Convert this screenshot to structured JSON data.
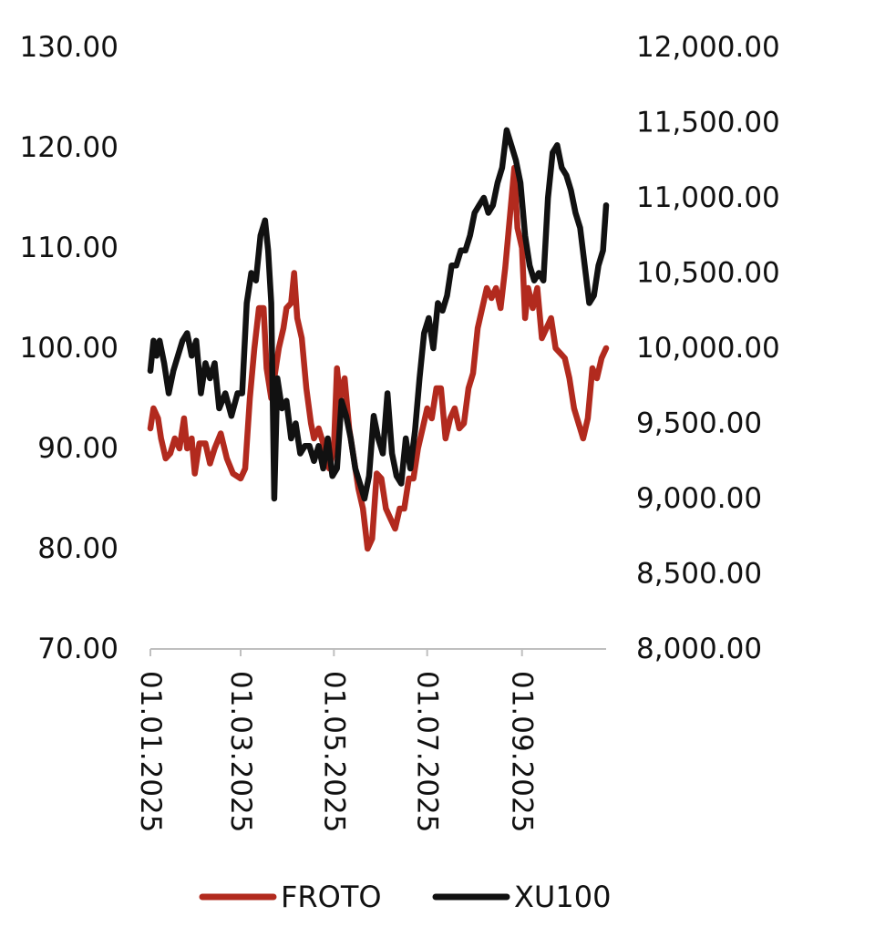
{
  "chart_data": {
    "type": "line",
    "title": "",
    "y_left": {
      "ticks": [
        "130.00",
        "120.00",
        "110.00",
        "100.00",
        "90.00",
        "80.00",
        "70.00"
      ],
      "range": [
        70,
        130
      ]
    },
    "y_right": {
      "ticks": [
        "12,000.00",
        "11,500.00",
        "11,000.00",
        "10,500.00",
        "10,000.00",
        "9,500.00",
        "9,000.00",
        "8,500.00",
        "8,000.00"
      ],
      "range": [
        8000,
        12000
      ]
    },
    "x_ticks": [
      "01.01.2025",
      "01.03.2025",
      "01.05.2025",
      "01.07.2025",
      "01.09.2025"
    ],
    "x_range": [
      "2025-01-01",
      "2025-10-26"
    ],
    "legend_position": "bottom",
    "grid": false,
    "series": [
      {
        "name": "FROTO",
        "axis": "left",
        "color": "#B22A1E",
        "points": [
          [
            "2025-01-01",
            92
          ],
          [
            "2025-01-03",
            94
          ],
          [
            "2025-01-06",
            93
          ],
          [
            "2025-01-08",
            91
          ],
          [
            "2025-01-11",
            89
          ],
          [
            "2025-01-14",
            89.5
          ],
          [
            "2025-01-17",
            91
          ],
          [
            "2025-01-20",
            90
          ],
          [
            "2025-01-23",
            93
          ],
          [
            "2025-01-25",
            90
          ],
          [
            "2025-01-28",
            91
          ],
          [
            "2025-01-30",
            87.5
          ],
          [
            "2025-02-02",
            90.5
          ],
          [
            "2025-02-06",
            90.5
          ],
          [
            "2025-02-09",
            88.5
          ],
          [
            "2025-02-12",
            90
          ],
          [
            "2025-02-16",
            91.5
          ],
          [
            "2025-02-20",
            89
          ],
          [
            "2025-02-24",
            87.5
          ],
          [
            "2025-03-01",
            87
          ],
          [
            "2025-03-04",
            88
          ],
          [
            "2025-03-07",
            95
          ],
          [
            "2025-03-10",
            100
          ],
          [
            "2025-03-13",
            104
          ],
          [
            "2025-03-16",
            104
          ],
          [
            "2025-03-18",
            98
          ],
          [
            "2025-03-21",
            95
          ],
          [
            "2025-03-23",
            97
          ],
          [
            "2025-03-26",
            100
          ],
          [
            "2025-03-29",
            102
          ],
          [
            "2025-03-31",
            104
          ],
          [
            "2025-04-03",
            104.5
          ],
          [
            "2025-04-05",
            107.5
          ],
          [
            "2025-04-07",
            103
          ],
          [
            "2025-04-10",
            101
          ],
          [
            "2025-04-13",
            96
          ],
          [
            "2025-04-16",
            92.5
          ],
          [
            "2025-04-18",
            91
          ],
          [
            "2025-04-21",
            92
          ],
          [
            "2025-04-25",
            90
          ],
          [
            "2025-04-28",
            88
          ],
          [
            "2025-05-01",
            90
          ],
          [
            "2025-05-03",
            98
          ],
          [
            "2025-05-05",
            95
          ],
          [
            "2025-05-08",
            97
          ],
          [
            "2025-05-11",
            92
          ],
          [
            "2025-05-14",
            89
          ],
          [
            "2025-05-17",
            86
          ],
          [
            "2025-05-20",
            84
          ],
          [
            "2025-05-23",
            80
          ],
          [
            "2025-05-26",
            81
          ],
          [
            "2025-05-29",
            87.5
          ],
          [
            "2025-06-01",
            87
          ],
          [
            "2025-06-04",
            84
          ],
          [
            "2025-06-07",
            83
          ],
          [
            "2025-06-10",
            82
          ],
          [
            "2025-06-13",
            84
          ],
          [
            "2025-06-16",
            84
          ],
          [
            "2025-06-19",
            87
          ],
          [
            "2025-06-22",
            87
          ],
          [
            "2025-06-25",
            90
          ],
          [
            "2025-06-28",
            92
          ],
          [
            "2025-07-01",
            94
          ],
          [
            "2025-07-04",
            93
          ],
          [
            "2025-07-07",
            96
          ],
          [
            "2025-07-10",
            96
          ],
          [
            "2025-07-13",
            91
          ],
          [
            "2025-07-16",
            93
          ],
          [
            "2025-07-19",
            94
          ],
          [
            "2025-07-22",
            92
          ],
          [
            "2025-07-25",
            92.5
          ],
          [
            "2025-07-28",
            96
          ],
          [
            "2025-07-31",
            97.5
          ],
          [
            "2025-08-03",
            102
          ],
          [
            "2025-08-06",
            104
          ],
          [
            "2025-08-09",
            106
          ],
          [
            "2025-08-12",
            105
          ],
          [
            "2025-08-15",
            106
          ],
          [
            "2025-08-18",
            104
          ],
          [
            "2025-08-21",
            108
          ],
          [
            "2025-08-24",
            113
          ],
          [
            "2025-08-27",
            118
          ],
          [
            "2025-08-29",
            112
          ],
          [
            "2025-09-01",
            110
          ],
          [
            "2025-09-03",
            103
          ],
          [
            "2025-09-05",
            106
          ],
          [
            "2025-09-08",
            104
          ],
          [
            "2025-09-11",
            106
          ],
          [
            "2025-09-14",
            101
          ],
          [
            "2025-09-17",
            102
          ],
          [
            "2025-09-20",
            103
          ],
          [
            "2025-09-23",
            100
          ],
          [
            "2025-09-26",
            99.5
          ],
          [
            "2025-09-29",
            99
          ],
          [
            "2025-10-02",
            97
          ],
          [
            "2025-10-05",
            94
          ],
          [
            "2025-10-08",
            92.5
          ],
          [
            "2025-10-11",
            91
          ],
          [
            "2025-10-14",
            93
          ],
          [
            "2025-10-17",
            98
          ],
          [
            "2025-10-20",
            97
          ],
          [
            "2025-10-23",
            99
          ],
          [
            "2025-10-26",
            100
          ]
        ]
      },
      {
        "name": "XU100",
        "axis": "right",
        "color": "#111111",
        "points": [
          [
            "2025-01-01",
            9850
          ],
          [
            "2025-01-03",
            10050
          ],
          [
            "2025-01-05",
            9950
          ],
          [
            "2025-01-07",
            10050
          ],
          [
            "2025-01-10",
            9900
          ],
          [
            "2025-01-13",
            9700
          ],
          [
            "2025-01-16",
            9850
          ],
          [
            "2025-01-19",
            9950
          ],
          [
            "2025-01-22",
            10050
          ],
          [
            "2025-01-25",
            10100
          ],
          [
            "2025-01-28",
            9950
          ],
          [
            "2025-01-31",
            10050
          ],
          [
            "2025-02-03",
            9700
          ],
          [
            "2025-02-06",
            9900
          ],
          [
            "2025-02-09",
            9800
          ],
          [
            "2025-02-12",
            9900
          ],
          [
            "2025-02-15",
            9600
          ],
          [
            "2025-02-19",
            9700
          ],
          [
            "2025-02-23",
            9550
          ],
          [
            "2025-02-27",
            9700
          ],
          [
            "2025-03-02",
            9700
          ],
          [
            "2025-03-05",
            10300
          ],
          [
            "2025-03-08",
            10500
          ],
          [
            "2025-03-11",
            10450
          ],
          [
            "2025-03-14",
            10750
          ],
          [
            "2025-03-17",
            10850
          ],
          [
            "2025-03-19",
            10650
          ],
          [
            "2025-03-21",
            10300
          ],
          [
            "2025-03-23",
            9000
          ],
          [
            "2025-03-25",
            9800
          ],
          [
            "2025-03-28",
            9600
          ],
          [
            "2025-03-31",
            9650
          ],
          [
            "2025-04-03",
            9400
          ],
          [
            "2025-04-06",
            9500
          ],
          [
            "2025-04-09",
            9300
          ],
          [
            "2025-04-12",
            9350
          ],
          [
            "2025-04-15",
            9350
          ],
          [
            "2025-04-18",
            9250
          ],
          [
            "2025-04-21",
            9350
          ],
          [
            "2025-04-24",
            9200
          ],
          [
            "2025-04-27",
            9400
          ],
          [
            "2025-04-30",
            9150
          ],
          [
            "2025-05-03",
            9200
          ],
          [
            "2025-05-06",
            9650
          ],
          [
            "2025-05-09",
            9550
          ],
          [
            "2025-05-12",
            9400
          ],
          [
            "2025-05-15",
            9200
          ],
          [
            "2025-05-18",
            9100
          ],
          [
            "2025-05-21",
            9000
          ],
          [
            "2025-05-24",
            9150
          ],
          [
            "2025-05-27",
            9550
          ],
          [
            "2025-05-30",
            9400
          ],
          [
            "2025-06-02",
            9300
          ],
          [
            "2025-06-05",
            9700
          ],
          [
            "2025-06-08",
            9300
          ],
          [
            "2025-06-11",
            9150
          ],
          [
            "2025-06-14",
            9100
          ],
          [
            "2025-06-17",
            9400
          ],
          [
            "2025-06-20",
            9200
          ],
          [
            "2025-06-23",
            9450
          ],
          [
            "2025-06-26",
            9800
          ],
          [
            "2025-06-29",
            10100
          ],
          [
            "2025-07-02",
            10200
          ],
          [
            "2025-07-05",
            10000
          ],
          [
            "2025-07-08",
            10300
          ],
          [
            "2025-07-11",
            10250
          ],
          [
            "2025-07-14",
            10350
          ],
          [
            "2025-07-17",
            10550
          ],
          [
            "2025-07-20",
            10550
          ],
          [
            "2025-07-23",
            10650
          ],
          [
            "2025-07-26",
            10650
          ],
          [
            "2025-07-29",
            10750
          ],
          [
            "2025-08-01",
            10900
          ],
          [
            "2025-08-04",
            10950
          ],
          [
            "2025-08-07",
            11000
          ],
          [
            "2025-08-10",
            10900
          ],
          [
            "2025-08-13",
            10950
          ],
          [
            "2025-08-16",
            11100
          ],
          [
            "2025-08-19",
            11200
          ],
          [
            "2025-08-22",
            11450
          ],
          [
            "2025-08-25",
            11350
          ],
          [
            "2025-08-28",
            11250
          ],
          [
            "2025-08-31",
            11100
          ],
          [
            "2025-09-03",
            10750
          ],
          [
            "2025-09-06",
            10550
          ],
          [
            "2025-09-09",
            10450
          ],
          [
            "2025-09-12",
            10500
          ],
          [
            "2025-09-15",
            10450
          ],
          [
            "2025-09-18",
            11000
          ],
          [
            "2025-09-21",
            11300
          ],
          [
            "2025-09-24",
            11350
          ],
          [
            "2025-09-27",
            11200
          ],
          [
            "2025-09-30",
            11150
          ],
          [
            "2025-10-03",
            11050
          ],
          [
            "2025-10-06",
            10900
          ],
          [
            "2025-10-09",
            10800
          ],
          [
            "2025-10-12",
            10550
          ],
          [
            "2025-10-15",
            10300
          ],
          [
            "2025-10-18",
            10350
          ],
          [
            "2025-10-21",
            10550
          ],
          [
            "2025-10-24",
            10650
          ],
          [
            "2025-10-26",
            10950
          ]
        ]
      }
    ]
  }
}
